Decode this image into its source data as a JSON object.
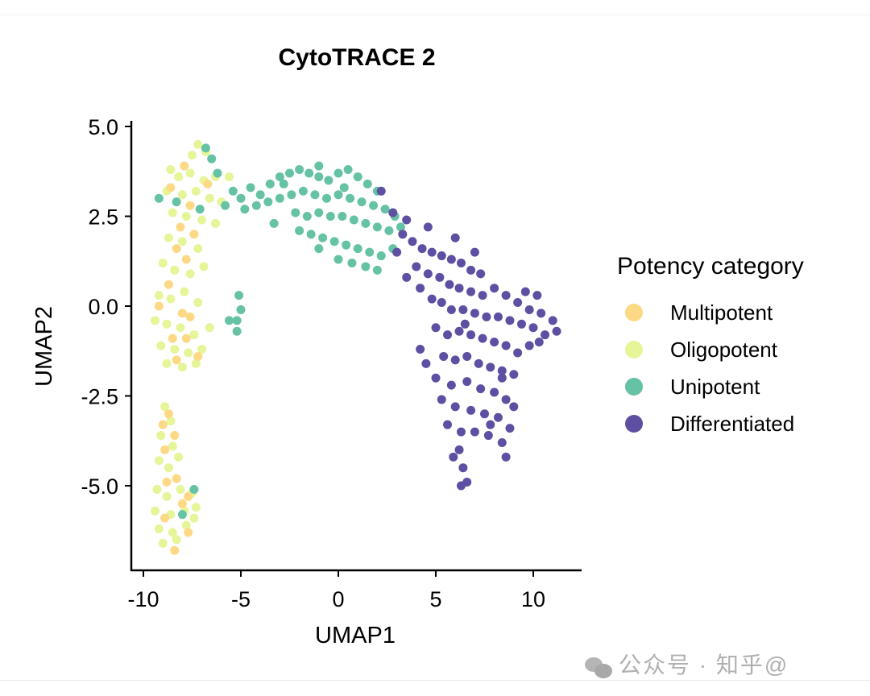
{
  "chart_data": {
    "type": "scatter",
    "title": "CytoTRACE 2",
    "xlabel": "UMAP1",
    "ylabel": "UMAP2",
    "xlim": [
      -10.6,
      12.5
    ],
    "ylim": [
      -7.3,
      5.15
    ],
    "x_ticks": [
      -10,
      -5,
      0,
      5,
      10
    ],
    "x_tick_labels": [
      "-10",
      "-5",
      "0",
      "5",
      "10"
    ],
    "y_ticks": [
      5.0,
      2.5,
      0.0,
      -2.5,
      -5.0
    ],
    "y_tick_labels": [
      "5.0",
      "2.5",
      "0.0",
      "-2.5",
      "-5.0"
    ],
    "grid": false,
    "legend": {
      "title": "Potency category",
      "placement": "right"
    },
    "series": [
      {
        "name": "Oligopotent",
        "color": "#E6F598",
        "points": [
          [
            -7.2,
            4.5
          ],
          [
            -6.8,
            4.3
          ],
          [
            -7.5,
            4.2
          ],
          [
            -8.6,
            3.8
          ],
          [
            -8.2,
            3.6
          ],
          [
            -7.6,
            3.7
          ],
          [
            -6.9,
            3.5
          ],
          [
            -6.3,
            3.6
          ],
          [
            -5.6,
            3.6
          ],
          [
            -8.8,
            3.2
          ],
          [
            -8.0,
            3.1
          ],
          [
            -7.3,
            3.2
          ],
          [
            -6.6,
            3.0
          ],
          [
            -6.0,
            2.9
          ],
          [
            -8.5,
            2.6
          ],
          [
            -7.8,
            2.5
          ],
          [
            -7.0,
            2.4
          ],
          [
            -6.3,
            2.3
          ],
          [
            -8.7,
            1.9
          ],
          [
            -8.0,
            1.8
          ],
          [
            -7.2,
            1.6
          ],
          [
            -9.0,
            1.2
          ],
          [
            -8.4,
            1.0
          ],
          [
            -7.6,
            0.9
          ],
          [
            -6.9,
            1.1
          ],
          [
            -9.2,
            0.3
          ],
          [
            -8.6,
            0.2
          ],
          [
            -7.9,
            0.4
          ],
          [
            -7.2,
            0.1
          ],
          [
            -9.4,
            -0.4
          ],
          [
            -8.8,
            -0.5
          ],
          [
            -8.1,
            -0.6
          ],
          [
            -7.4,
            -0.8
          ],
          [
            -6.6,
            -0.6
          ],
          [
            -9.1,
            -1.1
          ],
          [
            -8.4,
            -1.2
          ],
          [
            -7.7,
            -1.3
          ],
          [
            -7.0,
            -1.2
          ],
          [
            -8.8,
            -1.6
          ],
          [
            -8.0,
            -1.7
          ],
          [
            -7.3,
            -1.6
          ],
          [
            -8.9,
            -2.8
          ],
          [
            -8.6,
            -3.2
          ],
          [
            -9.1,
            -3.6
          ],
          [
            -8.5,
            -3.9
          ],
          [
            -9.2,
            -4.3
          ],
          [
            -8.7,
            -4.5
          ],
          [
            -8.2,
            -4.2
          ],
          [
            -9.3,
            -5.1
          ],
          [
            -8.8,
            -5.3
          ],
          [
            -8.1,
            -5.1
          ],
          [
            -7.5,
            -5.2
          ],
          [
            -9.4,
            -5.7
          ],
          [
            -8.6,
            -5.8
          ],
          [
            -7.9,
            -5.7
          ],
          [
            -7.3,
            -5.6
          ],
          [
            -9.2,
            -6.2
          ],
          [
            -8.5,
            -6.3
          ],
          [
            -7.8,
            -6.1
          ],
          [
            -7.4,
            -5.9
          ],
          [
            -9.0,
            -6.6
          ],
          [
            -8.3,
            -6.5
          ]
        ]
      },
      {
        "name": "Multipotent",
        "color": "#FDD985",
        "points": [
          [
            -7.9,
            3.9
          ],
          [
            -8.6,
            3.3
          ],
          [
            -7.6,
            2.8
          ],
          [
            -8.1,
            2.2
          ],
          [
            -7.4,
            2.0
          ],
          [
            -8.3,
            1.6
          ],
          [
            -7.8,
            1.3
          ],
          [
            -8.7,
            0.6
          ],
          [
            -8.0,
            -0.2
          ],
          [
            -7.6,
            -0.3
          ],
          [
            -8.5,
            -0.9
          ],
          [
            -7.8,
            -0.9
          ],
          [
            -7.2,
            -1.4
          ],
          [
            -8.3,
            -1.5
          ],
          [
            -9.2,
            0.0
          ],
          [
            -6.7,
            3.4
          ],
          [
            -8.7,
            -3.0
          ],
          [
            -8.4,
            -3.6
          ],
          [
            -8.9,
            -4.0
          ],
          [
            -8.3,
            -4.8
          ],
          [
            -8.8,
            -4.9
          ],
          [
            -8.0,
            -5.5
          ],
          [
            -8.9,
            -5.9
          ],
          [
            -7.7,
            -6.3
          ],
          [
            -8.4,
            -6.8
          ],
          [
            -9.0,
            -3.3
          ],
          [
            -7.7,
            -5.3
          ]
        ]
      },
      {
        "name": "Unipotent",
        "color": "#66C2A5",
        "points": [
          [
            -6.8,
            4.4
          ],
          [
            -6.5,
            4.1
          ],
          [
            -6.2,
            3.7
          ],
          [
            -5.4,
            3.2
          ],
          [
            -5.8,
            2.8
          ],
          [
            -5.0,
            3.0
          ],
          [
            -4.5,
            3.3
          ],
          [
            -4.0,
            3.1
          ],
          [
            -3.5,
            3.4
          ],
          [
            -3.0,
            3.6
          ],
          [
            -2.5,
            3.7
          ],
          [
            -2.0,
            3.8
          ],
          [
            -1.5,
            3.7
          ],
          [
            -1.0,
            3.6
          ],
          [
            -0.5,
            3.5
          ],
          [
            0.0,
            3.7
          ],
          [
            0.5,
            3.8
          ],
          [
            1.0,
            3.6
          ],
          [
            1.5,
            3.4
          ],
          [
            2.0,
            3.2
          ],
          [
            -4.8,
            2.7
          ],
          [
            -4.2,
            2.8
          ],
          [
            -3.6,
            2.9
          ],
          [
            -3.0,
            3.0
          ],
          [
            -2.4,
            3.1
          ],
          [
            -1.8,
            3.2
          ],
          [
            -1.2,
            3.1
          ],
          [
            -0.6,
            3.0
          ],
          [
            0.0,
            3.1
          ],
          [
            0.6,
            3.0
          ],
          [
            1.2,
            2.9
          ],
          [
            1.8,
            2.8
          ],
          [
            2.4,
            2.7
          ],
          [
            2.9,
            2.5
          ],
          [
            -2.2,
            2.6
          ],
          [
            -1.6,
            2.5
          ],
          [
            -1.0,
            2.6
          ],
          [
            -0.4,
            2.5
          ],
          [
            0.2,
            2.5
          ],
          [
            0.8,
            2.4
          ],
          [
            1.4,
            2.3
          ],
          [
            2.0,
            2.2
          ],
          [
            2.6,
            2.1
          ],
          [
            -1.4,
            2.0
          ],
          [
            -0.8,
            1.9
          ],
          [
            -0.2,
            1.8
          ],
          [
            0.4,
            1.7
          ],
          [
            1.0,
            1.6
          ],
          [
            1.6,
            1.5
          ],
          [
            2.2,
            1.4
          ],
          [
            -1.0,
            1.6
          ],
          [
            0.0,
            1.3
          ],
          [
            0.7,
            1.2
          ],
          [
            1.4,
            1.1
          ],
          [
            2.0,
            1.0
          ],
          [
            -2.0,
            2.1
          ],
          [
            -3.3,
            2.3
          ],
          [
            3.2,
            2.2
          ],
          [
            2.8,
            1.6
          ],
          [
            -5.1,
            0.3
          ],
          [
            -5.0,
            -0.1
          ],
          [
            -5.2,
            -0.4
          ],
          [
            -5.6,
            -0.4
          ],
          [
            -5.2,
            -0.7
          ],
          [
            -8.3,
            2.9
          ],
          [
            -7.1,
            2.7
          ],
          [
            -9.2,
            3.0
          ],
          [
            -7.4,
            -5.1
          ],
          [
            -8.0,
            -5.8
          ],
          [
            -1.0,
            3.9
          ],
          [
            0.3,
            3.3
          ],
          [
            -2.8,
            3.4
          ]
        ]
      },
      {
        "name": "Differentiated",
        "color": "#5E4FA2",
        "points": [
          [
            2.2,
            3.2
          ],
          [
            2.8,
            2.6
          ],
          [
            3.3,
            2.0
          ],
          [
            3.0,
            1.5
          ],
          [
            3.8,
            1.8
          ],
          [
            4.3,
            1.6
          ],
          [
            4.8,
            1.5
          ],
          [
            5.3,
            1.4
          ],
          [
            5.8,
            1.3
          ],
          [
            6.3,
            1.2
          ],
          [
            6.8,
            1.0
          ],
          [
            7.3,
            0.9
          ],
          [
            4.0,
            1.1
          ],
          [
            4.6,
            0.9
          ],
          [
            5.2,
            0.8
          ],
          [
            5.7,
            0.6
          ],
          [
            6.2,
            0.5
          ],
          [
            6.8,
            0.4
          ],
          [
            7.4,
            0.3
          ],
          [
            8.0,
            0.5
          ],
          [
            8.6,
            0.3
          ],
          [
            9.2,
            0.1
          ],
          [
            9.8,
            -0.1
          ],
          [
            10.4,
            -0.2
          ],
          [
            11.0,
            -0.4
          ],
          [
            11.2,
            -0.7
          ],
          [
            10.6,
            -0.8
          ],
          [
            10.0,
            -0.6
          ],
          [
            9.4,
            -0.5
          ],
          [
            8.8,
            -0.4
          ],
          [
            8.2,
            -0.3
          ],
          [
            7.6,
            -0.3
          ],
          [
            7.0,
            -0.2
          ],
          [
            6.4,
            -0.1
          ],
          [
            5.8,
            -0.1
          ],
          [
            5.3,
            0.1
          ],
          [
            4.8,
            0.2
          ],
          [
            5.0,
            -0.6
          ],
          [
            5.6,
            -0.8
          ],
          [
            6.2,
            -0.7
          ],
          [
            6.8,
            -0.8
          ],
          [
            7.4,
            -0.9
          ],
          [
            8.0,
            -1.0
          ],
          [
            8.6,
            -1.1
          ],
          [
            9.2,
            -1.3
          ],
          [
            9.8,
            -1.1
          ],
          [
            10.3,
            -1.0
          ],
          [
            5.4,
            -1.4
          ],
          [
            6.0,
            -1.5
          ],
          [
            6.6,
            -1.4
          ],
          [
            7.2,
            -1.6
          ],
          [
            7.8,
            -1.7
          ],
          [
            8.4,
            -1.8
          ],
          [
            9.0,
            -1.9
          ],
          [
            4.2,
            -1.2
          ],
          [
            4.5,
            -1.6
          ],
          [
            5.0,
            -2.0
          ],
          [
            5.8,
            -2.2
          ],
          [
            6.6,
            -2.1
          ],
          [
            7.3,
            -2.3
          ],
          [
            8.0,
            -2.4
          ],
          [
            8.6,
            -2.6
          ],
          [
            9.0,
            -2.8
          ],
          [
            5.3,
            -2.6
          ],
          [
            6.0,
            -2.8
          ],
          [
            6.8,
            -2.9
          ],
          [
            7.5,
            -3.0
          ],
          [
            8.2,
            -3.1
          ],
          [
            8.8,
            -3.4
          ],
          [
            5.6,
            -3.3
          ],
          [
            6.3,
            -3.5
          ],
          [
            7.0,
            -3.5
          ],
          [
            7.7,
            -3.6
          ],
          [
            8.4,
            -3.8
          ],
          [
            8.6,
            -4.2
          ],
          [
            6.2,
            -4.0
          ],
          [
            6.4,
            -4.5
          ],
          [
            6.6,
            -4.9
          ],
          [
            6.3,
            -5.0
          ],
          [
            5.9,
            -4.2
          ],
          [
            3.5,
            0.8
          ],
          [
            4.2,
            0.5
          ],
          [
            9.6,
            0.4
          ],
          [
            10.2,
            0.3
          ],
          [
            7.0,
            1.5
          ],
          [
            6.0,
            1.9
          ],
          [
            4.6,
            2.2
          ],
          [
            3.5,
            2.4
          ],
          [
            8.4,
            -2.0
          ],
          [
            7.8,
            -3.3
          ],
          [
            6.5,
            -0.5
          ]
        ]
      }
    ],
    "legend_entries": [
      {
        "label": "Multipotent",
        "color": "#FDD985"
      },
      {
        "label": "Oligopotent",
        "color": "#E6F598"
      },
      {
        "label": "Unipotent",
        "color": "#66C2A5"
      },
      {
        "label": "Differentiated",
        "color": "#5E4FA2"
      }
    ]
  },
  "watermark": "公众号 · 知乎@"
}
